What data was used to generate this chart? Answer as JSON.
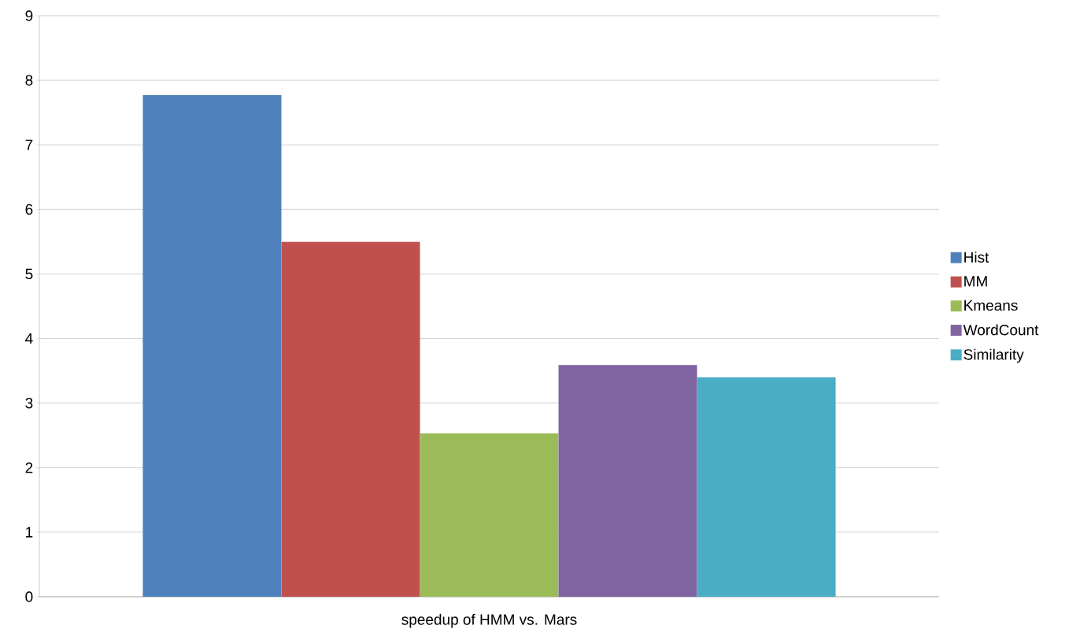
{
  "chart_data": {
    "type": "bar",
    "categories": [
      "speedup of HMM vs. Mars"
    ],
    "series": [
      {
        "name": "Hist",
        "color": "#4f81bd",
        "values": [
          7.77
        ]
      },
      {
        "name": "MM",
        "color": "#c0504d",
        "values": [
          5.5
        ]
      },
      {
        "name": "Kmeans",
        "color": "#9bbb59",
        "values": [
          2.53
        ]
      },
      {
        "name": "WordCount",
        "color": "#8064a2",
        "values": [
          3.59
        ]
      },
      {
        "name": "Similarity",
        "color": "#4bacc6",
        "values": [
          3.4
        ]
      }
    ],
    "ylim": [
      0,
      9
    ],
    "yticks": [
      0,
      1,
      2,
      3,
      4,
      5,
      6,
      7,
      8,
      9
    ],
    "grid": "y",
    "legend": "right"
  }
}
